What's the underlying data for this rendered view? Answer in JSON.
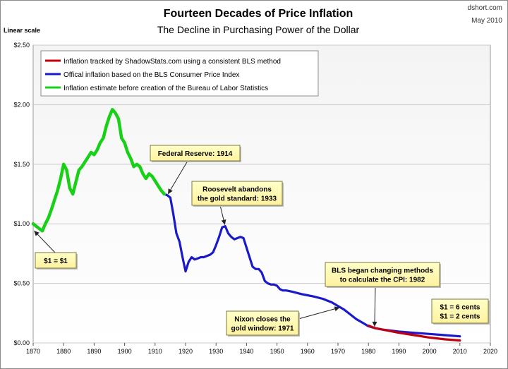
{
  "chart_data": {
    "type": "line",
    "title": "Fourteen Decades of Price Inflation",
    "subtitle": "The Decline in Purchasing Power of the Dollar",
    "source": "dshort.com",
    "date": "May 2010",
    "ylabel": "Linear scale",
    "xlim": [
      1870,
      2020
    ],
    "ylim": [
      0,
      2.5
    ],
    "x_ticks": [
      "1870",
      "1880",
      "1890",
      "1900",
      "1910",
      "1920",
      "1930",
      "1940",
      "1950",
      "1960",
      "1970",
      "1980",
      "1990",
      "2000",
      "2010",
      "2020"
    ],
    "y_ticks": [
      "$0.00",
      "$0.50",
      "$1.00",
      "$1.50",
      "$2.00",
      "$2.50"
    ],
    "grid": true,
    "legend_position": "top-left",
    "series": [
      {
        "name": "Inflation tracked by ShadowStats.com using a consistent BLS method",
        "color": "#c0000f",
        "x": [
          1980,
          1982,
          1985,
          1990,
          1995,
          2000,
          2005,
          2010
        ],
        "y": [
          0.145,
          0.125,
          0.11,
          0.085,
          0.065,
          0.045,
          0.03,
          0.02
        ]
      },
      {
        "name": "Offical inflation based on the BLS Consumer Price Index",
        "color": "#1a1ac8",
        "x": [
          1913,
          1914,
          1915,
          1916,
          1917,
          1918,
          1919,
          1920,
          1921,
          1922,
          1923,
          1924,
          1925,
          1926,
          1927,
          1928,
          1929,
          1930,
          1931,
          1932,
          1933,
          1934,
          1935,
          1936,
          1937,
          1938,
          1939,
          1940,
          1941,
          1942,
          1943,
          1944,
          1945,
          1946,
          1947,
          1948,
          1949,
          1950,
          1951,
          1952,
          1953,
          1955,
          1958,
          1960,
          1962,
          1965,
          1968,
          1970,
          1972,
          1974,
          1976,
          1978,
          1980,
          1982,
          1985,
          1990,
          1995,
          2000,
          2005,
          2010
        ],
        "y": [
          1.25,
          1.24,
          1.22,
          1.08,
          0.92,
          0.85,
          0.72,
          0.6,
          0.68,
          0.72,
          0.7,
          0.71,
          0.72,
          0.72,
          0.73,
          0.74,
          0.76,
          0.82,
          0.89,
          0.97,
          0.98,
          0.92,
          0.89,
          0.87,
          0.88,
          0.89,
          0.88,
          0.8,
          0.72,
          0.64,
          0.62,
          0.62,
          0.59,
          0.52,
          0.5,
          0.49,
          0.49,
          0.48,
          0.45,
          0.44,
          0.44,
          0.43,
          0.41,
          0.4,
          0.39,
          0.37,
          0.34,
          0.31,
          0.28,
          0.24,
          0.2,
          0.17,
          0.14,
          0.125,
          0.11,
          0.095,
          0.085,
          0.075,
          0.065,
          0.055
        ]
      },
      {
        "name": "Inflation estimate before creation of the Bureau of Labor Statistics",
        "color": "#19d019",
        "x": [
          1870,
          1871,
          1872,
          1873,
          1874,
          1875,
          1876,
          1877,
          1878,
          1879,
          1880,
          1881,
          1882,
          1883,
          1884,
          1885,
          1886,
          1887,
          1888,
          1889,
          1890,
          1891,
          1892,
          1893,
          1894,
          1895,
          1896,
          1897,
          1898,
          1899,
          1900,
          1901,
          1902,
          1903,
          1904,
          1905,
          1906,
          1907,
          1908,
          1909,
          1910,
          1911,
          1912,
          1913
        ],
        "y": [
          1.0,
          0.98,
          0.96,
          0.94,
          1.0,
          1.05,
          1.12,
          1.2,
          1.28,
          1.38,
          1.5,
          1.45,
          1.3,
          1.25,
          1.35,
          1.45,
          1.48,
          1.52,
          1.56,
          1.6,
          1.58,
          1.62,
          1.68,
          1.72,
          1.82,
          1.9,
          1.96,
          1.93,
          1.88,
          1.72,
          1.68,
          1.6,
          1.55,
          1.48,
          1.5,
          1.48,
          1.42,
          1.38,
          1.42,
          1.4,
          1.36,
          1.32,
          1.28,
          1.25
        ]
      }
    ],
    "annotations": [
      {
        "id": "dollar",
        "lines": [
          "$1 = $1"
        ],
        "x": 1870,
        "y": 0.95
      },
      {
        "id": "fed",
        "lines": [
          "Federal Reserve: 1914"
        ],
        "x": 1914,
        "y": 1.24
      },
      {
        "id": "roosevelt",
        "lines": [
          "Roosevelt abandons",
          "the gold standard: 1933"
        ],
        "x": 1933,
        "y": 0.98
      },
      {
        "id": "bls",
        "lines": [
          "BLS began  changing methods",
          "to calculate the CPI:  1982"
        ],
        "x": 1982,
        "y": 0.125
      },
      {
        "id": "nixon",
        "lines": [
          "Nixon closes the",
          "gold window: 1971"
        ],
        "x": 1971,
        "y": 0.3
      },
      {
        "id": "cents",
        "lines": [
          "$1 = 6 cents",
          "$1 = 2 cents"
        ],
        "colors": [
          "#1a1ac8",
          "#c0000f"
        ]
      }
    ]
  }
}
